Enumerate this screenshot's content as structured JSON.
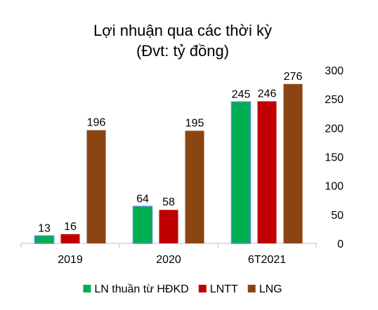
{
  "chart_data": {
    "type": "bar",
    "title": "Lợi nhuận qua các thời kỳ",
    "subtitle": "(Đvt: tỷ đồng)",
    "categories": [
      "2019",
      "2020",
      "6T2021"
    ],
    "series": [
      {
        "name": "LN thuần từ HĐKD",
        "values": [
          13,
          64,
          245
        ],
        "color": "#00b050",
        "stroke": "#4a90c4"
      },
      {
        "name": "LNTT",
        "values": [
          16,
          58,
          246
        ],
        "color": "#c00000"
      },
      {
        "name": "LNG",
        "values": [
          196,
          195,
          276
        ],
        "color": "#8b4513"
      }
    ],
    "ylim": [
      0,
      300
    ],
    "yticks": [
      "0",
      "50",
      "100",
      "150",
      "200",
      "250",
      "300"
    ],
    "xlabel": "",
    "ylabel": "",
    "grid": false,
    "legend": "bottom"
  }
}
